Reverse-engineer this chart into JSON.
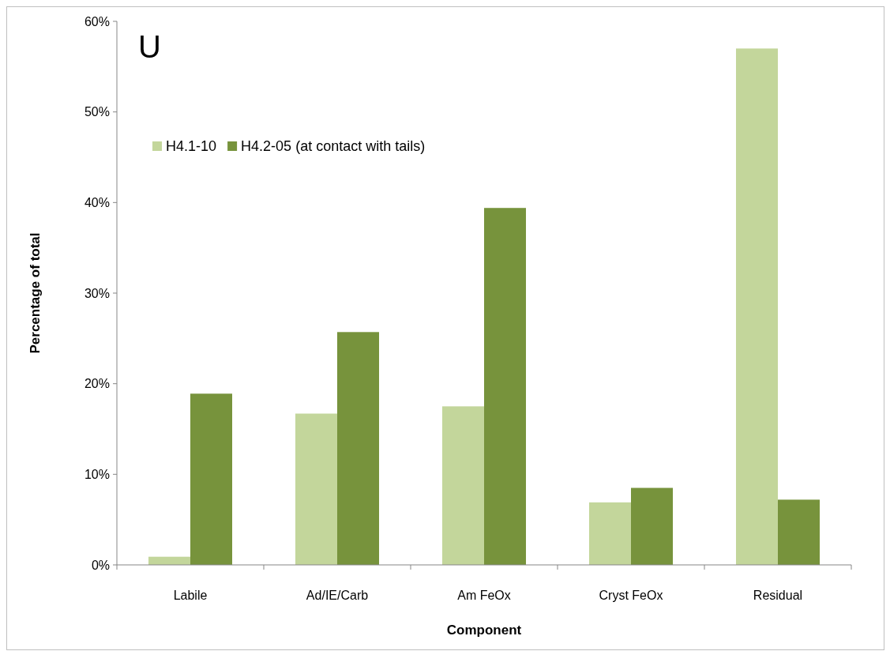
{
  "chart_data": {
    "type": "bar",
    "xlabel": "Component",
    "ylabel": "Percentage of total",
    "annotations": [
      "U"
    ],
    "categories": [
      "Labile",
      "Ad/IE/Carb",
      "Am FeOx",
      "Cryst FeOx",
      "Residual"
    ],
    "series": [
      {
        "name": "H4.1-10",
        "color": "#c3d69b",
        "values": [
          0.9,
          16.7,
          17.5,
          6.9,
          57.0
        ]
      },
      {
        "name": "H4.2-05 (at contact with tails)",
        "color": "#77933c",
        "values": [
          18.9,
          25.7,
          39.4,
          8.5,
          7.2
        ]
      }
    ],
    "ylim": [
      0,
      60
    ],
    "yticks": [
      {
        "value": 0,
        "label": "0%"
      },
      {
        "value": 10,
        "label": "10%"
      },
      {
        "value": 20,
        "label": "20%"
      },
      {
        "value": 30,
        "label": "30%"
      },
      {
        "value": 40,
        "label": "40%"
      },
      {
        "value": 50,
        "label": "50%"
      },
      {
        "value": 60,
        "label": "60%"
      }
    ],
    "legend": "top left",
    "grid": false
  }
}
